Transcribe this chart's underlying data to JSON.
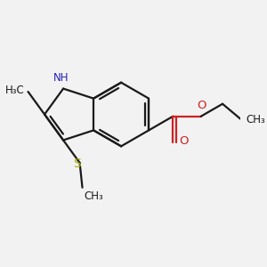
{
  "bg_color": "#f2f2f2",
  "bond_color": "#1a1a1a",
  "bond_width": 1.6,
  "N_color": "#2222bb",
  "O_color": "#cc2222",
  "S_color": "#aaaa00",
  "font_size": 8.5,
  "xlim": [
    -0.5,
    3.2
  ],
  "ylim": [
    -1.0,
    1.9
  ]
}
